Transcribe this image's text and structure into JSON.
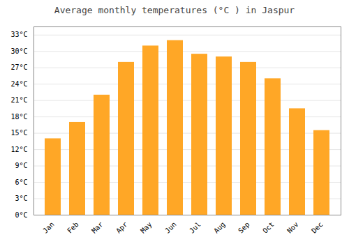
{
  "chart_data": {
    "type": "bar",
    "title": "Average monthly temperatures (°C ) in Jaspur",
    "categories": [
      "Jan",
      "Feb",
      "Mar",
      "Apr",
      "May",
      "Jun",
      "Jul",
      "Aug",
      "Sep",
      "Oct",
      "Nov",
      "Dec"
    ],
    "values": [
      14,
      17,
      22,
      28,
      31,
      32,
      29.5,
      29,
      28,
      25,
      19.5,
      15.5
    ],
    "color": "#FFA726",
    "ylim": [
      0,
      34.5
    ],
    "yticks": [
      {
        "value": 0,
        "label": "0°C"
      },
      {
        "value": 3,
        "label": "3°C"
      },
      {
        "value": 6,
        "label": "6°C"
      },
      {
        "value": 9,
        "label": "9°C"
      },
      {
        "value": 12,
        "label": "12°C"
      },
      {
        "value": 15,
        "label": "15°C"
      },
      {
        "value": 18,
        "label": "18°C"
      },
      {
        "value": 21,
        "label": "21°C"
      },
      {
        "value": 24,
        "label": "24°C"
      },
      {
        "value": 27,
        "label": "27°C"
      },
      {
        "value": 30,
        "label": "30°C"
      },
      {
        "value": 33,
        "label": "33°C"
      }
    ],
    "grid": true
  }
}
